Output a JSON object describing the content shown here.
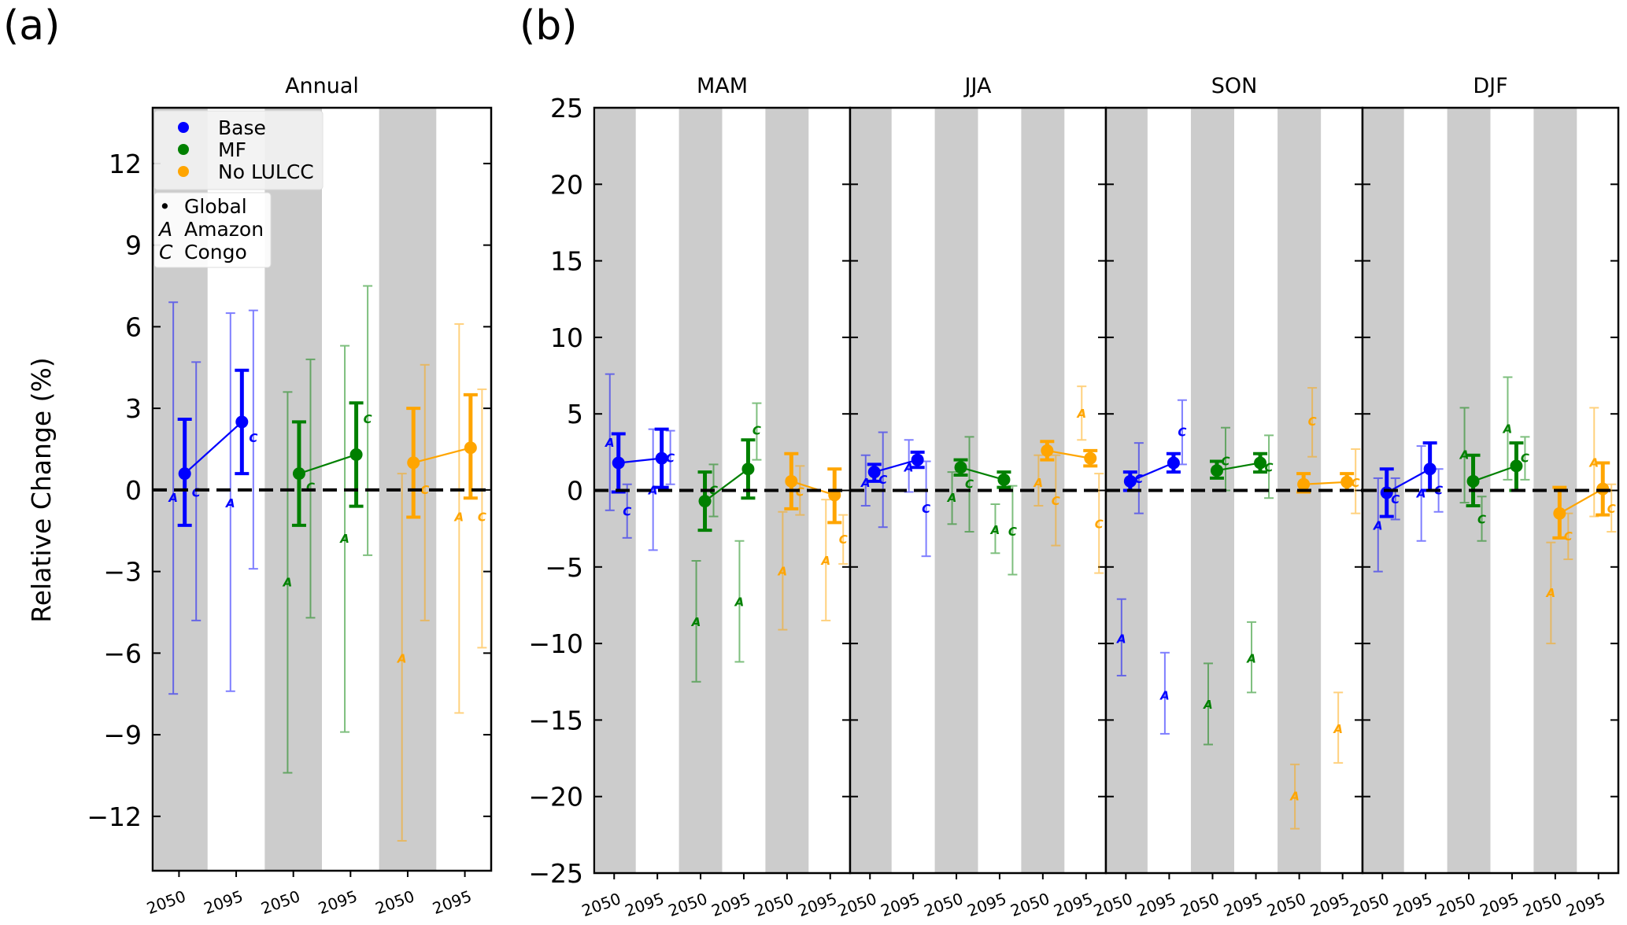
{
  "figure": {
    "panel_letters": [
      "(a)",
      "(b)"
    ],
    "ylabel": "Relative Change (%)",
    "legend": {
      "scenarios": [
        {
          "label": "Base",
          "color": "#0000ff"
        },
        {
          "label": "MF",
          "color": "#008000"
        },
        {
          "label": "No LULCC",
          "color": "#ffa500"
        }
      ],
      "regions": [
        {
          "symbol": "•",
          "label": "Global"
        },
        {
          "symbol": "A",
          "label": "Amazon"
        },
        {
          "symbol": "C",
          "label": "Congo"
        }
      ]
    },
    "band_color": "#cccccc"
  },
  "chart_data": [
    {
      "type": "errorbar",
      "panel": "(a)",
      "title": "Annual",
      "categories": [
        "2050",
        "2095",
        "2050",
        "2095",
        "2050",
        "2095"
      ],
      "ylim": [
        -14,
        14.05
      ],
      "yticks": [
        -12,
        -9,
        -6,
        -3,
        0,
        3,
        6,
        9,
        12
      ],
      "ytick_labels": [
        "−12",
        "−9",
        "−6",
        "−3",
        "0",
        "3",
        "6",
        "9",
        "12"
      ],
      "reference_line": 0,
      "series": [
        {
          "name": "Base",
          "color": "#0000ff",
          "points": [
            {
              "period": "2050",
              "global": [
                0.6,
                -1.3,
                2.6
              ],
              "amazon": [
                -0.3,
                -7.5,
                6.9
              ],
              "congo": [
                -0.1,
                -4.8,
                4.7
              ]
            },
            {
              "period": "2095",
              "global": [
                2.5,
                0.6,
                4.4
              ],
              "amazon": [
                -0.5,
                -7.4,
                6.5
              ],
              "congo": [
                1.9,
                -2.9,
                6.6
              ]
            }
          ]
        },
        {
          "name": "MF",
          "color": "#008000",
          "points": [
            {
              "period": "2050",
              "global": [
                0.6,
                -1.3,
                2.5
              ],
              "amazon": [
                -3.4,
                -10.4,
                3.6
              ],
              "congo": [
                0.1,
                -4.7,
                4.8
              ]
            },
            {
              "period": "2095",
              "global": [
                1.3,
                -0.6,
                3.2
              ],
              "amazon": [
                -1.8,
                -8.9,
                5.3
              ],
              "congo": [
                2.6,
                -2.4,
                7.5
              ]
            }
          ]
        },
        {
          "name": "No LULCC",
          "color": "#ffa500",
          "points": [
            {
              "period": "2050",
              "global": [
                1.0,
                -1.0,
                3.0
              ],
              "amazon": [
                -6.2,
                -12.9,
                0.6
              ],
              "congo": [
                0.0,
                -4.8,
                4.6
              ]
            },
            {
              "period": "2095",
              "global": [
                1.55,
                -0.3,
                3.5
              ],
              "amazon": [
                -1.0,
                -8.2,
                6.1
              ],
              "congo": [
                -1.0,
                -5.8,
                3.7
              ]
            }
          ]
        }
      ]
    },
    {
      "type": "errorbar",
      "panel": "(b)",
      "title": "MAM",
      "categories": [
        "2050",
        "2095",
        "2050",
        "2095",
        "2050",
        "2095"
      ],
      "ylim": [
        -25,
        25
      ],
      "yticks": [
        -25,
        -20,
        -15,
        -10,
        -5,
        0,
        5,
        10,
        15,
        20,
        25
      ],
      "ytick_labels": [
        "−25",
        "−20",
        "−15",
        "−10",
        "−5",
        "0",
        "5",
        "10",
        "15",
        "20",
        "25"
      ],
      "reference_line": 0,
      "series": [
        {
          "name": "Base",
          "color": "#0000ff",
          "points": [
            {
              "period": "2050",
              "global": [
                1.8,
                -0.1,
                3.7
              ],
              "amazon": [
                3.1,
                -1.3,
                7.6
              ],
              "congo": [
                -1.4,
                -3.1,
                0.4
              ]
            },
            {
              "period": "2095",
              "global": [
                2.1,
                0.2,
                4.0
              ],
              "amazon": [
                0.0,
                -3.9,
                4.0
              ],
              "congo": [
                2.1,
                0.4,
                3.9
              ]
            }
          ]
        },
        {
          "name": "MF",
          "color": "#008000",
          "points": [
            {
              "period": "2050",
              "global": [
                -0.7,
                -2.6,
                1.2
              ],
              "amazon": [
                -8.6,
                -12.5,
                -4.6
              ],
              "congo": [
                0.0,
                -1.7,
                1.7
              ]
            },
            {
              "period": "2095",
              "global": [
                1.4,
                -0.5,
                3.3
              ],
              "amazon": [
                -7.3,
                -11.2,
                -3.3
              ],
              "congo": [
                3.9,
                2.0,
                5.7
              ]
            }
          ]
        },
        {
          "name": "No LULCC",
          "color": "#ffa500",
          "points": [
            {
              "period": "2050",
              "global": [
                0.6,
                -1.2,
                2.4
              ],
              "amazon": [
                -5.3,
                -9.1,
                -1.4
              ],
              "congo": [
                -0.1,
                -1.6,
                1.6
              ]
            },
            {
              "period": "2095",
              "global": [
                -0.3,
                -2.1,
                1.4
              ],
              "amazon": [
                -4.6,
                -8.5,
                -0.6
              ],
              "congo": [
                -3.2,
                -4.8,
                -1.6
              ]
            }
          ]
        }
      ]
    },
    {
      "type": "errorbar",
      "panel": "(b)",
      "title": "JJA",
      "categories": [
        "2050",
        "2095",
        "2050",
        "2095",
        "2050",
        "2095"
      ],
      "ylim": [
        -25,
        25
      ],
      "yticks": [
        -25,
        -20,
        -15,
        -10,
        -5,
        0,
        5,
        10,
        15,
        20,
        25
      ],
      "reference_line": 0,
      "series": [
        {
          "name": "Base",
          "color": "#0000ff",
          "points": [
            {
              "period": "2050",
              "global": [
                1.2,
                0.6,
                1.7
              ],
              "amazon": [
                0.5,
                -1.0,
                2.3
              ],
              "congo": [
                0.7,
                -2.4,
                3.8
              ]
            },
            {
              "period": "2095",
              "global": [
                2.0,
                1.5,
                2.5
              ],
              "amazon": [
                1.5,
                -0.1,
                3.3
              ],
              "congo": [
                -1.2,
                -4.3,
                1.9
              ]
            }
          ]
        },
        {
          "name": "MF",
          "color": "#008000",
          "points": [
            {
              "period": "2050",
              "global": [
                1.5,
                1.0,
                2.0
              ],
              "amazon": [
                -0.5,
                -2.2,
                1.2
              ],
              "congo": [
                0.4,
                -2.7,
                3.5
              ]
            },
            {
              "period": "2095",
              "global": [
                0.7,
                0.2,
                1.2
              ],
              "amazon": [
                -2.6,
                -4.1,
                -0.9
              ],
              "congo": [
                -2.7,
                -5.5,
                0.3
              ]
            }
          ]
        },
        {
          "name": "No LULCC",
          "color": "#ffa500",
          "points": [
            {
              "period": "2050",
              "global": [
                2.6,
                2.0,
                3.2
              ],
              "amazon": [
                0.5,
                -1.0,
                2.3
              ],
              "congo": [
                -0.7,
                -3.6,
                2.3
              ]
            },
            {
              "period": "2095",
              "global": [
                2.1,
                1.6,
                2.6
              ],
              "amazon": [
                5.0,
                3.3,
                6.8
              ],
              "congo": [
                -2.2,
                -5.4,
                1.1
              ]
            }
          ]
        }
      ]
    },
    {
      "type": "errorbar",
      "panel": "(b)",
      "title": "SON",
      "categories": [
        "2050",
        "2095",
        "2050",
        "2095",
        "2050",
        "2095"
      ],
      "ylim": [
        -25,
        25
      ],
      "yticks": [
        -25,
        -20,
        -15,
        -10,
        -5,
        0,
        5,
        10,
        15,
        20,
        25
      ],
      "reference_line": 0,
      "series": [
        {
          "name": "Base",
          "color": "#0000ff",
          "points": [
            {
              "period": "2050",
              "global": [
                0.6,
                0.0,
                1.2
              ],
              "amazon": [
                -9.7,
                -12.1,
                -7.1
              ],
              "congo": [
                0.75,
                -1.5,
                3.1
              ]
            },
            {
              "period": "2095",
              "global": [
                1.8,
                1.2,
                2.4
              ],
              "amazon": [
                -13.4,
                -15.9,
                -10.6
              ],
              "congo": [
                3.8,
                1.7,
                5.9
              ]
            }
          ]
        },
        {
          "name": "MF",
          "color": "#008000",
          "points": [
            {
              "period": "2050",
              "global": [
                1.3,
                0.8,
                1.9
              ],
              "amazon": [
                -14.0,
                -16.6,
                -11.3
              ],
              "congo": [
                1.9,
                0.0,
                4.1
              ]
            },
            {
              "period": "2095",
              "global": [
                1.8,
                1.2,
                2.4
              ],
              "amazon": [
                -11.0,
                -13.2,
                -8.6
              ],
              "congo": [
                1.5,
                -0.5,
                3.6
              ]
            }
          ]
        },
        {
          "name": "No LULCC",
          "color": "#ffa500",
          "points": [
            {
              "period": "2050",
              "global": [
                0.4,
                -0.1,
                1.1
              ],
              "amazon": [
                -20.0,
                -22.1,
                -17.9
              ],
              "congo": [
                4.5,
                2.2,
                6.7
              ]
            },
            {
              "period": "2095",
              "global": [
                0.55,
                0.0,
                1.1
              ],
              "amazon": [
                -15.6,
                -17.8,
                -13.2
              ],
              "congo": [
                0.5,
                -1.5,
                2.7
              ]
            }
          ]
        }
      ]
    },
    {
      "type": "errorbar",
      "panel": "(b)",
      "title": "DJF",
      "categories": [
        "2050",
        "2095",
        "2050",
        "2095",
        "2050",
        "2095"
      ],
      "ylim": [
        -25,
        25
      ],
      "yticks": [
        -25,
        -20,
        -15,
        -10,
        -5,
        0,
        5,
        10,
        15,
        20,
        25
      ],
      "reference_line": 0,
      "series": [
        {
          "name": "Base",
          "color": "#0000ff",
          "points": [
            {
              "period": "2050",
              "global": [
                -0.15,
                -1.7,
                1.4
              ],
              "amazon": [
                -2.3,
                -5.3,
                0.8
              ],
              "congo": [
                -0.6,
                -1.9,
                0.8
              ]
            },
            {
              "period": "2095",
              "global": [
                1.4,
                0.0,
                3.1
              ],
              "amazon": [
                -0.2,
                -3.3,
                2.9
              ],
              "congo": [
                0.0,
                -1.4,
                1.4
              ]
            }
          ]
        },
        {
          "name": "MF",
          "color": "#008000",
          "points": [
            {
              "period": "2050",
              "global": [
                0.6,
                -1.0,
                2.3
              ],
              "amazon": [
                2.3,
                -0.8,
                5.4
              ],
              "congo": [
                -1.9,
                -3.3,
                -0.4
              ]
            },
            {
              "period": "2095",
              "global": [
                1.6,
                0.0,
                3.1
              ],
              "amazon": [
                4.0,
                0.7,
                7.4
              ],
              "congo": [
                2.1,
                0.7,
                3.5
              ]
            }
          ]
        },
        {
          "name": "No LULCC",
          "color": "#ffa500",
          "points": [
            {
              "period": "2050",
              "global": [
                -1.5,
                -3.1,
                0.2
              ],
              "amazon": [
                -6.7,
                -10.0,
                -3.4
              ],
              "congo": [
                -3.0,
                -4.5,
                -1.5
              ]
            },
            {
              "period": "2095",
              "global": [
                0.1,
                -1.6,
                1.8
              ],
              "amazon": [
                1.8,
                -1.7,
                5.4
              ],
              "congo": [
                -1.2,
                -2.7,
                0.4
              ]
            }
          ]
        }
      ]
    }
  ]
}
